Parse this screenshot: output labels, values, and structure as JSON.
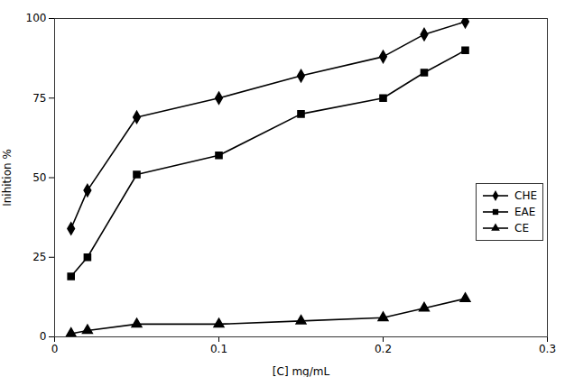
{
  "chart_data": {
    "type": "line",
    "x": [
      0.01,
      0.02,
      0.05,
      0.1,
      0.15,
      0.2,
      0.225,
      0.25
    ],
    "series": [
      {
        "name": "CHE",
        "color": "#000000",
        "marker": "diamond",
        "values": [
          34,
          46,
          69,
          75,
          82,
          88,
          95,
          99
        ]
      },
      {
        "name": "EAE",
        "color": "#000000",
        "marker": "square",
        "values": [
          19,
          25,
          51,
          57,
          70,
          75,
          83,
          90
        ]
      },
      {
        "name": "CE",
        "color": "#000000",
        "marker": "triangle",
        "values": [
          1,
          2,
          4,
          4,
          5,
          6,
          9,
          12
        ]
      }
    ],
    "xlabel": "[C] mg/mL",
    "ylabel": "Inihition %",
    "xlim": [
      0,
      0.3
    ],
    "ylim": [
      0,
      100
    ],
    "xticks": [
      0,
      0.1,
      0.2,
      0.3
    ],
    "yticks": [
      0,
      25,
      50,
      75,
      100
    ],
    "grid": false,
    "legend": "lower right"
  }
}
